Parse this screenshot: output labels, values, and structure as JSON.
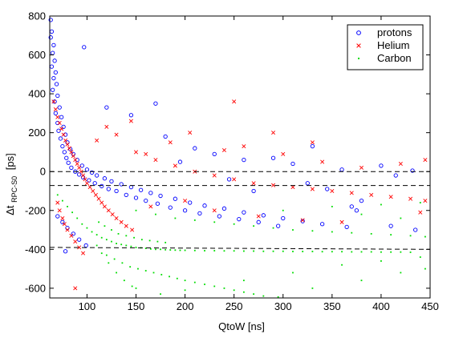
{
  "chart_data": {
    "type": "scatter",
    "xlabel": "QtoW [ns]",
    "ylabel_main": "Δt",
    "ylabel_sub": "RPC-S0",
    "ylabel_unit": "[ps]",
    "xlim": [
      62,
      450
    ],
    "ylim": [
      -650,
      800
    ],
    "xticks": [
      100,
      150,
      200,
      250,
      300,
      350,
      400,
      450
    ],
    "yticks": [
      -600,
      -400,
      -200,
      0,
      200,
      400,
      600,
      800
    ],
    "grid": false,
    "legend_position": "top-right",
    "series": [
      {
        "name": "protons",
        "marker": "circle",
        "color": "#0000ff",
        "points": [
          [
            63,
            780
          ],
          [
            64,
            720
          ],
          [
            63,
            690
          ],
          [
            66,
            650
          ],
          [
            65,
            610
          ],
          [
            67,
            570
          ],
          [
            64,
            540
          ],
          [
            68,
            510
          ],
          [
            66,
            480
          ],
          [
            69,
            450
          ],
          [
            65,
            420
          ],
          [
            70,
            390
          ],
          [
            67,
            360
          ],
          [
            72,
            330
          ],
          [
            68,
            300
          ],
          [
            74,
            280
          ],
          [
            70,
            250
          ],
          [
            76,
            230
          ],
          [
            71,
            210
          ],
          [
            78,
            190
          ],
          [
            73,
            170
          ],
          [
            80,
            150
          ],
          [
            75,
            130
          ],
          [
            83,
            115
          ],
          [
            77,
            100
          ],
          [
            86,
            90
          ],
          [
            79,
            70
          ],
          [
            90,
            60
          ],
          [
            81,
            45
          ],
          [
            95,
            30
          ],
          [
            84,
            20
          ],
          [
            100,
            10
          ],
          [
            88,
            0
          ],
          [
            105,
            -5
          ],
          [
            92,
            -15
          ],
          [
            110,
            -20
          ],
          [
            96,
            -30
          ],
          [
            118,
            -35
          ],
          [
            102,
            -45
          ],
          [
            125,
            -50
          ],
          [
            108,
            -60
          ],
          [
            135,
            -65
          ],
          [
            115,
            -75
          ],
          [
            145,
            -80
          ],
          [
            122,
            -90
          ],
          [
            155,
            -95
          ],
          [
            130,
            -100
          ],
          [
            165,
            -110
          ],
          [
            140,
            -120
          ],
          [
            175,
            -125
          ],
          [
            150,
            -135
          ],
          [
            190,
            -140
          ],
          [
            160,
            -150
          ],
          [
            205,
            -160
          ],
          [
            172,
            -165
          ],
          [
            220,
            -175
          ],
          [
            185,
            -185
          ],
          [
            240,
            -190
          ],
          [
            200,
            -200
          ],
          [
            260,
            -210
          ],
          [
            215,
            -215
          ],
          [
            280,
            -225
          ],
          [
            235,
            -230
          ],
          [
            300,
            -240
          ],
          [
            255,
            -245
          ],
          [
            320,
            -255
          ],
          [
            275,
            -260
          ],
          [
            340,
            -270
          ],
          [
            295,
            -280
          ],
          [
            365,
            -285
          ],
          [
            70,
            -230
          ],
          [
            75,
            -260
          ],
          [
            80,
            -290
          ],
          [
            86,
            -320
          ],
          [
            92,
            -350
          ],
          [
            99,
            -380
          ],
          [
            78,
            -410
          ],
          [
            97,
            640
          ],
          [
            180,
            180
          ],
          [
            210,
            120
          ],
          [
            260,
            60
          ],
          [
            310,
            40
          ],
          [
            360,
            10
          ],
          [
            400,
            30
          ],
          [
            432,
            5
          ],
          [
            415,
            -20
          ],
          [
            170,
            350
          ],
          [
            145,
            290
          ],
          [
            120,
            330
          ],
          [
            230,
            90
          ],
          [
            290,
            70
          ],
          [
            330,
            130
          ],
          [
            245,
            -40
          ],
          [
            370,
            -180
          ],
          [
            375,
            -200
          ],
          [
            410,
            -280
          ],
          [
            435,
            -300
          ],
          [
            380,
            -150
          ],
          [
            345,
            -90
          ],
          [
            325,
            -60
          ],
          [
            270,
            -100
          ],
          [
            195,
            50
          ]
        ]
      },
      {
        "name": "Helium",
        "marker": "x",
        "color": "#ff0000",
        "points": [
          [
            66,
            360
          ],
          [
            68,
            320
          ],
          [
            70,
            280
          ],
          [
            72,
            250
          ],
          [
            74,
            220
          ],
          [
            76,
            190
          ],
          [
            78,
            160
          ],
          [
            80,
            140
          ],
          [
            82,
            120
          ],
          [
            84,
            100
          ],
          [
            86,
            80
          ],
          [
            88,
            60
          ],
          [
            90,
            40
          ],
          [
            92,
            20
          ],
          [
            94,
            0
          ],
          [
            96,
            -20
          ],
          [
            98,
            -40
          ],
          [
            100,
            -60
          ],
          [
            103,
            -80
          ],
          [
            106,
            -100
          ],
          [
            109,
            -120
          ],
          [
            112,
            -140
          ],
          [
            115,
            -160
          ],
          [
            118,
            -180
          ],
          [
            122,
            -200
          ],
          [
            126,
            -220
          ],
          [
            130,
            -240
          ],
          [
            135,
            -260
          ],
          [
            140,
            -280
          ],
          [
            146,
            -300
          ],
          [
            80,
            -300
          ],
          [
            84,
            -330
          ],
          [
            88,
            -360
          ],
          [
            92,
            -390
          ],
          [
            96,
            -420
          ],
          [
            88,
            -600
          ],
          [
            70,
            -160
          ],
          [
            72,
            -200
          ],
          [
            75,
            -240
          ],
          [
            77,
            -270
          ],
          [
            150,
            100
          ],
          [
            170,
            60
          ],
          [
            190,
            30
          ],
          [
            210,
            0
          ],
          [
            230,
            -20
          ],
          [
            250,
            -40
          ],
          [
            270,
            -60
          ],
          [
            290,
            -70
          ],
          [
            310,
            -80
          ],
          [
            330,
            -90
          ],
          [
            350,
            -100
          ],
          [
            370,
            -110
          ],
          [
            390,
            -120
          ],
          [
            410,
            -130
          ],
          [
            430,
            -140
          ],
          [
            445,
            -150
          ],
          [
            440,
            -210
          ],
          [
            250,
            360
          ],
          [
            290,
            200
          ],
          [
            330,
            150
          ],
          [
            205,
            200
          ],
          [
            185,
            150
          ],
          [
            160,
            90
          ],
          [
            240,
            110
          ],
          [
            260,
            130
          ],
          [
            300,
            90
          ],
          [
            340,
            50
          ],
          [
            380,
            20
          ],
          [
            420,
            40
          ],
          [
            445,
            60
          ],
          [
            130,
            190
          ],
          [
            110,
            160
          ],
          [
            120,
            230
          ],
          [
            145,
            260
          ],
          [
            165,
            -180
          ],
          [
            200,
            -150
          ],
          [
            230,
            -200
          ],
          [
            275,
            -230
          ],
          [
            320,
            -250
          ],
          [
            360,
            -260
          ]
        ]
      },
      {
        "name": "Carbon",
        "marker": "dot",
        "color": "#00dd00",
        "points": [
          [
            70,
            -120
          ],
          [
            75,
            -150
          ],
          [
            80,
            -180
          ],
          [
            85,
            -210
          ],
          [
            90,
            -240
          ],
          [
            95,
            -270
          ],
          [
            100,
            -290
          ],
          [
            105,
            -310
          ],
          [
            110,
            -325
          ],
          [
            115,
            -340
          ],
          [
            120,
            -350
          ],
          [
            125,
            -360
          ],
          [
            130,
            -370
          ],
          [
            135,
            -375
          ],
          [
            140,
            -380
          ],
          [
            145,
            -385
          ],
          [
            150,
            -390
          ],
          [
            155,
            -392
          ],
          [
            160,
            -395
          ],
          [
            165,
            -398
          ],
          [
            170,
            -400
          ],
          [
            175,
            -400
          ],
          [
            180,
            -402
          ],
          [
            185,
            -403
          ],
          [
            190,
            -404
          ],
          [
            195,
            -405
          ],
          [
            200,
            -405
          ],
          [
            210,
            -406
          ],
          [
            220,
            -407
          ],
          [
            230,
            -407
          ],
          [
            240,
            -408
          ],
          [
            250,
            -408
          ],
          [
            260,
            -409
          ],
          [
            270,
            -409
          ],
          [
            280,
            -410
          ],
          [
            290,
            -410
          ],
          [
            300,
            -410
          ],
          [
            310,
            -411
          ],
          [
            320,
            -411
          ],
          [
            330,
            -411
          ],
          [
            340,
            -412
          ],
          [
            350,
            -412
          ],
          [
            360,
            -412
          ],
          [
            370,
            -413
          ],
          [
            380,
            -413
          ],
          [
            390,
            -413
          ],
          [
            400,
            -414
          ],
          [
            410,
            -414
          ],
          [
            420,
            -414
          ],
          [
            430,
            -415
          ],
          [
            112,
            -260
          ],
          [
            118,
            -280
          ],
          [
            125,
            -300
          ],
          [
            132,
            -320
          ],
          [
            140,
            -330
          ],
          [
            148,
            -340
          ],
          [
            156,
            -350
          ],
          [
            164,
            -355
          ],
          [
            172,
            -360
          ],
          [
            180,
            -365
          ],
          [
            120,
            -430
          ],
          [
            128,
            -450
          ],
          [
            136,
            -470
          ],
          [
            144,
            -490
          ],
          [
            152,
            -500
          ],
          [
            160,
            -510
          ],
          [
            168,
            -520
          ],
          [
            176,
            -530
          ],
          [
            184,
            -540
          ],
          [
            192,
            -550
          ],
          [
            200,
            -560
          ],
          [
            210,
            -570
          ],
          [
            220,
            -580
          ],
          [
            230,
            -590
          ],
          [
            240,
            -600
          ],
          [
            250,
            -610
          ],
          [
            260,
            -620
          ],
          [
            270,
            -630
          ],
          [
            280,
            -640
          ],
          [
            295,
            -645
          ],
          [
            150,
            -200
          ],
          [
            170,
            -220
          ],
          [
            190,
            -240
          ],
          [
            210,
            -250
          ],
          [
            230,
            -260
          ],
          [
            250,
            -270
          ],
          [
            270,
            -280
          ],
          [
            290,
            -290
          ],
          [
            310,
            -300
          ],
          [
            330,
            -305
          ],
          [
            350,
            -310
          ],
          [
            370,
            -315
          ],
          [
            390,
            -320
          ],
          [
            410,
            -325
          ],
          [
            430,
            -330
          ],
          [
            445,
            -335
          ],
          [
            150,
            -600
          ],
          [
            175,
            -630
          ],
          [
            200,
            -610
          ],
          [
            260,
            -560
          ],
          [
            310,
            -520
          ],
          [
            360,
            -480
          ],
          [
            400,
            -460
          ],
          [
            440,
            -440
          ],
          [
            330,
            -600
          ],
          [
            380,
            -560
          ],
          [
            420,
            -520
          ],
          [
            445,
            -500
          ],
          [
            300,
            -200
          ],
          [
            350,
            -180
          ],
          [
            400,
            -170
          ],
          [
            440,
            -160
          ],
          [
            380,
            -220
          ],
          [
            420,
            -240
          ],
          [
            110,
            -380
          ],
          [
            115,
            -420
          ],
          [
            122,
            -470
          ],
          [
            130,
            -520
          ],
          [
            138,
            -560
          ],
          [
            146,
            -590
          ]
        ]
      }
    ],
    "reference_lines": [
      {
        "style": "dashed",
        "y_values": [
          0,
          0
        ]
      },
      {
        "style": "dashed",
        "y_values": [
          -72,
          -72
        ]
      },
      {
        "style": "dashed",
        "y_values": [
          -390,
          -400
        ]
      }
    ]
  }
}
